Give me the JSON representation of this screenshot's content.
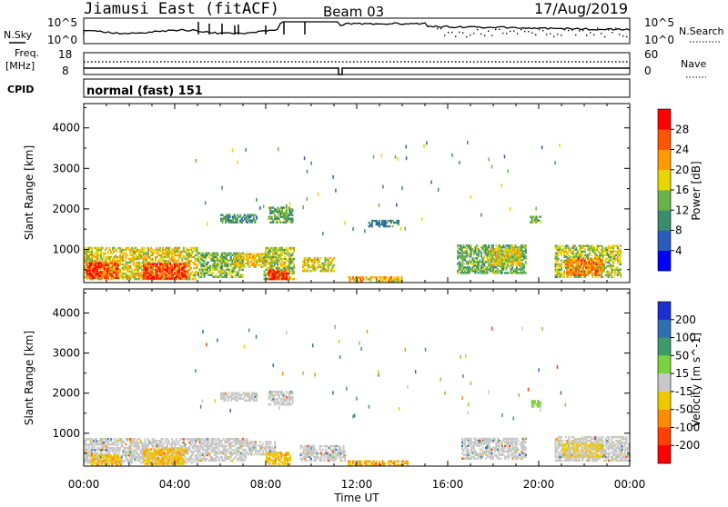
{
  "header": {
    "station": "Jiamusi East (fitACF)",
    "beam": "Beam 03",
    "date": "17/Aug/2019"
  },
  "noise_panel": {
    "left_label": "N.Sky",
    "right_label": "N.Search",
    "tick_top": "10^5",
    "tick_bottom": "10^0"
  },
  "freq_panel": {
    "label_line1": "Freq.",
    "label_line2": "[MHz]",
    "tick_top": "18",
    "tick_bottom": "8",
    "right_label": "Nave",
    "right_tick_top": "60",
    "right_tick_bottom": "0"
  },
  "cpid_panel": {
    "label": "CPID",
    "program": "normal (fast) 151"
  },
  "chart_data": [
    {
      "type": "heatmap",
      "quantity": "Power",
      "ylabel": "Slant Range [km]",
      "xlabel": "Time UT",
      "x_ticks": [
        "00:00",
        "04:00",
        "08:00",
        "12:00",
        "16:00",
        "20:00",
        "00:00"
      ],
      "y_ticks": [
        1000,
        2000,
        3000,
        4000
      ],
      "ylim": [
        180,
        4600
      ],
      "xlim_hours": [
        0,
        24
      ],
      "colorbar_label": "Power [dB]",
      "colorbar_ticks": [
        4,
        8,
        12,
        16,
        20,
        24,
        28
      ],
      "colorbar_range": [
        0,
        32
      ],
      "colorbar_colors": [
        "#0000ff",
        "#2b5bbf",
        "#3a8c6e",
        "#6ab24a",
        "#e8d600",
        "#ff9a00",
        "#ff5500",
        "#ff0000"
      ],
      "regions": [
        {
          "t0": 0.0,
          "t1": 5.0,
          "r0": 250,
          "r1": 1050,
          "level": 18
        },
        {
          "t0": 0.1,
          "t1": 1.5,
          "r0": 280,
          "r1": 650,
          "level": 27
        },
        {
          "t0": 2.6,
          "t1": 4.5,
          "r0": 260,
          "r1": 650,
          "level": 28
        },
        {
          "t0": 5.0,
          "t1": 7.0,
          "r0": 300,
          "r1": 900,
          "level": 14
        },
        {
          "t0": 6.6,
          "t1": 8.0,
          "r0": 550,
          "r1": 900,
          "level": 19
        },
        {
          "t0": 7.9,
          "t1": 9.2,
          "r0": 250,
          "r1": 1050,
          "level": 16
        },
        {
          "t0": 8.1,
          "t1": 9.0,
          "r0": 250,
          "r1": 500,
          "level": 28
        },
        {
          "t0": 6.0,
          "t1": 7.6,
          "r0": 1650,
          "r1": 1850,
          "level": 11
        },
        {
          "t0": 8.1,
          "t1": 9.2,
          "r0": 1650,
          "r1": 2050,
          "level": 12
        },
        {
          "t0": 9.6,
          "t1": 11.0,
          "r0": 450,
          "r1": 800,
          "level": 17
        },
        {
          "t0": 11.6,
          "t1": 14.0,
          "r0": 200,
          "r1": 320,
          "level": 20
        },
        {
          "t0": 12.5,
          "t1": 13.8,
          "r0": 1550,
          "r1": 1700,
          "level": 9
        },
        {
          "t0": 16.4,
          "t1": 19.4,
          "r0": 400,
          "r1": 1100,
          "level": 13
        },
        {
          "t0": 17.8,
          "t1": 19.2,
          "r0": 600,
          "r1": 1050,
          "level": 18
        },
        {
          "t0": 19.6,
          "t1": 20.1,
          "r0": 1650,
          "r1": 1800,
          "level": 12
        },
        {
          "t0": 20.7,
          "t1": 23.6,
          "r0": 300,
          "r1": 1100,
          "level": 16
        },
        {
          "t0": 21.2,
          "t1": 22.8,
          "r0": 350,
          "r1": 800,
          "level": 24
        }
      ]
    },
    {
      "type": "heatmap",
      "quantity": "Velocity",
      "ylabel": "Slant Range [km]",
      "xlabel": "Time UT",
      "x_ticks": [
        "00:00",
        "04:00",
        "08:00",
        "12:00",
        "16:00",
        "20:00",
        "00:00"
      ],
      "y_ticks": [
        1000,
        2000,
        3000,
        4000
      ],
      "ylim": [
        180,
        4600
      ],
      "xlim_hours": [
        0,
        24
      ],
      "colorbar_label": "Velocity [m s^-1]",
      "colorbar_ticks": [
        "200",
        "100",
        "50",
        "15",
        "-15",
        "-50",
        "-100",
        "-200"
      ],
      "colorbar_colors": [
        "#1b2fd0",
        "#2f6fb0",
        "#3f9a6a",
        "#7ad23c",
        "#c8c8c8",
        "#f0c800",
        "#ff8c00",
        "#ff4000",
        "#ff0000"
      ],
      "regions": [
        {
          "t0": 0.0,
          "t1": 5.0,
          "r0": 250,
          "r1": 850,
          "level": 0
        },
        {
          "t0": 0.3,
          "t1": 1.6,
          "r0": 200,
          "r1": 450,
          "level": -40
        },
        {
          "t0": 2.6,
          "t1": 4.4,
          "r0": 220,
          "r1": 600,
          "level": -40
        },
        {
          "t0": 5.0,
          "t1": 7.2,
          "r0": 300,
          "r1": 850,
          "level": 0
        },
        {
          "t0": 7.2,
          "t1": 8.4,
          "r0": 450,
          "r1": 800,
          "level": 0
        },
        {
          "t0": 8.0,
          "t1": 9.1,
          "r0": 220,
          "r1": 500,
          "level": -40
        },
        {
          "t0": 9.5,
          "t1": 11.5,
          "r0": 300,
          "r1": 700,
          "level": 0
        },
        {
          "t0": 11.6,
          "t1": 14.2,
          "r0": 190,
          "r1": 300,
          "level": -50
        },
        {
          "t0": 6.0,
          "t1": 7.6,
          "r0": 1800,
          "r1": 2000,
          "level": 0
        },
        {
          "t0": 8.1,
          "t1": 9.2,
          "r0": 1700,
          "r1": 2050,
          "level": 0
        },
        {
          "t0": 16.6,
          "t1": 19.4,
          "r0": 350,
          "r1": 850,
          "level": 0
        },
        {
          "t0": 19.6,
          "t1": 20.1,
          "r0": 1650,
          "r1": 1800,
          "level": 30
        },
        {
          "t0": 20.7,
          "t1": 24.0,
          "r0": 300,
          "r1": 900,
          "level": 0
        },
        {
          "t0": 21.0,
          "t1": 22.8,
          "r0": 400,
          "r1": 750,
          "level": -20
        }
      ]
    }
  ]
}
